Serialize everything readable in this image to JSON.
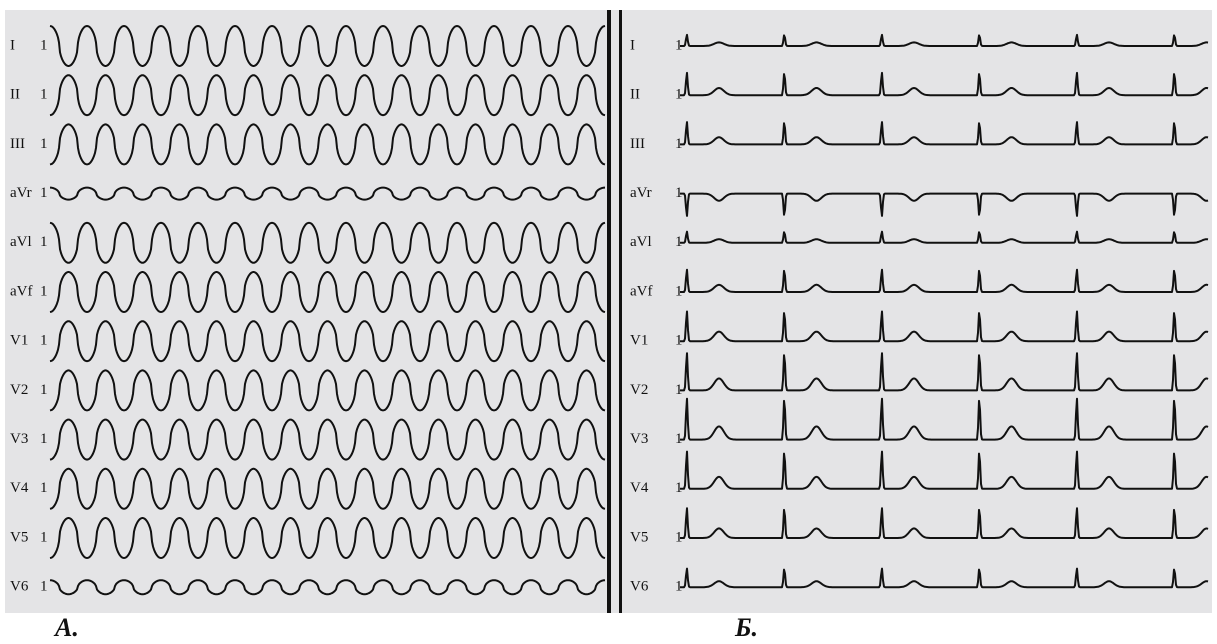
{
  "panels": [
    {
      "caption": "А.",
      "leads": [
        {
          "name": "I",
          "gain": "1"
        },
        {
          "name": "II",
          "gain": "1"
        },
        {
          "name": "III",
          "gain": "1"
        },
        {
          "name": "aVr",
          "gain": "1"
        },
        {
          "name": "aVl",
          "gain": "1"
        },
        {
          "name": "aVf",
          "gain": "1"
        },
        {
          "name": "V1",
          "gain": "1"
        },
        {
          "name": "V2",
          "gain": "1"
        },
        {
          "name": "V3",
          "gain": "1"
        },
        {
          "name": "V4",
          "gain": "1"
        },
        {
          "name": "V5",
          "gain": "1"
        },
        {
          "name": "V6",
          "gain": "1"
        }
      ]
    },
    {
      "caption": "Б.",
      "leads": [
        {
          "name": "I",
          "gain": "1"
        },
        {
          "name": "II",
          "gain": "1"
        },
        {
          "name": "III",
          "gain": "1"
        },
        {
          "name": "aVr",
          "gain": "1"
        },
        {
          "name": "aVl",
          "gain": "1"
        },
        {
          "name": "aVf",
          "gain": "1"
        },
        {
          "name": "V1",
          "gain": "1"
        },
        {
          "name": "V2",
          "gain": "1"
        },
        {
          "name": "V3",
          "gain": "1"
        },
        {
          "name": "V4",
          "gain": "1"
        },
        {
          "name": "V5",
          "gain": "1"
        },
        {
          "name": "V6",
          "gain": "1"
        }
      ]
    }
  ]
}
